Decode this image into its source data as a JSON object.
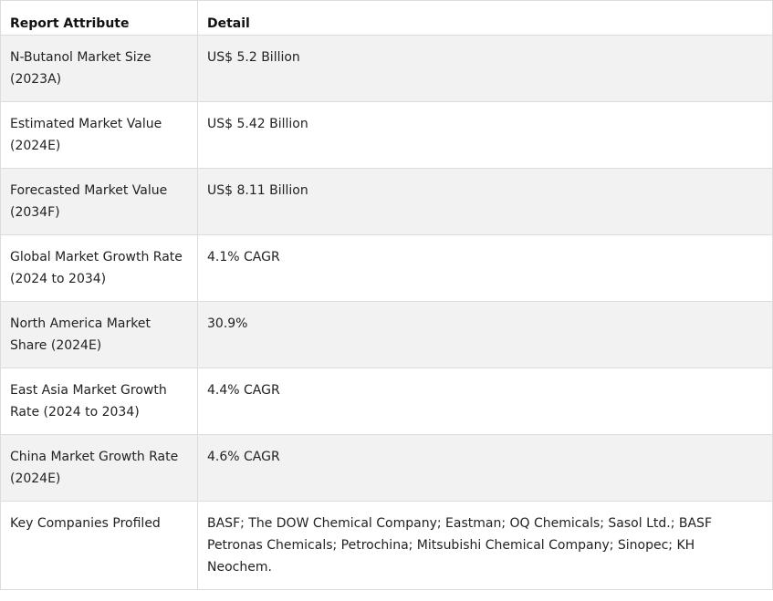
{
  "table": {
    "headers": [
      "Report Attribute",
      "Detail"
    ],
    "rows": [
      [
        "N-Butanol Market Size (2023A)",
        "US$ 5.2 Billion"
      ],
      [
        "Estimated Market Value (2024E)",
        "US$ 5.42 Billion"
      ],
      [
        "Forecasted Market Value (2034F)",
        "US$ 8.11 Billion"
      ],
      [
        "Global Market Growth Rate (2024 to 2034)",
        "4.1% CAGR"
      ],
      [
        "North America Market Share (2024E)",
        "30.9%"
      ],
      [
        "East Asia Market Growth Rate (2024 to 2034)",
        "4.4% CAGR"
      ],
      [
        "China Market Growth Rate (2024E)",
        "4.6% CAGR"
      ],
      [
        "Key Companies Profiled",
        "BASF; The DOW Chemical Company; Eastman; OQ Chemicals; Sasol Ltd.; BASF Petronas Chemicals; Petrochina; Mitsubishi Chemical Company; Sinopec; KH Neochem."
      ]
    ]
  }
}
